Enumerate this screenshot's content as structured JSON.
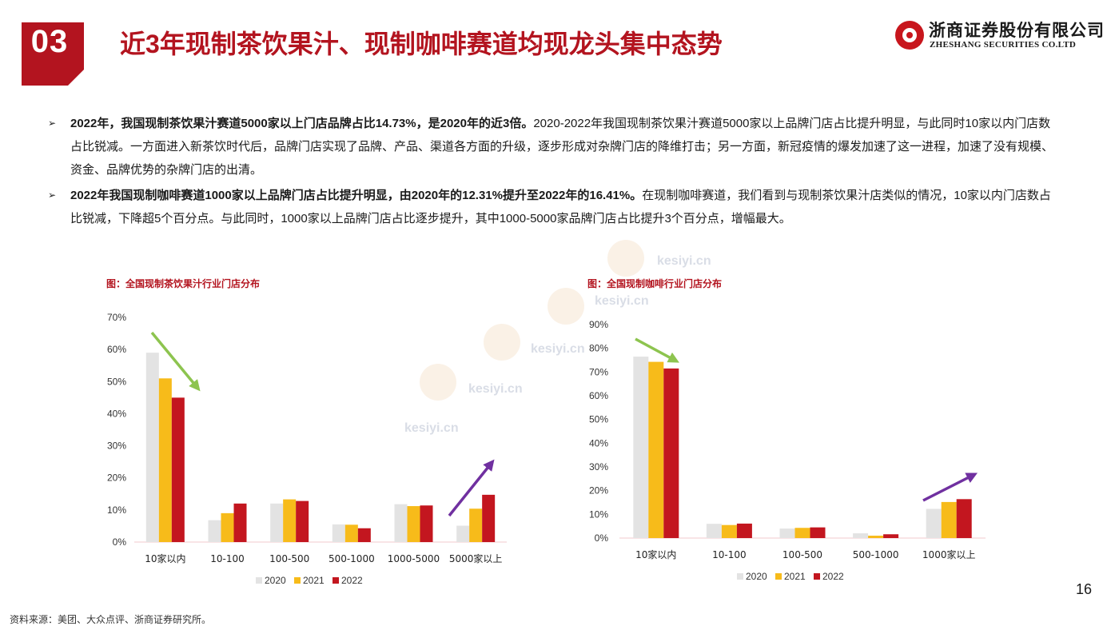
{
  "header": {
    "section_number": "03",
    "title": "近3年现制茶饮果汁、现制咖啡赛道均现龙头集中态势",
    "logo_cn": "浙商证券股份有限公司",
    "logo_en": "ZHESHANG SECURITIES CO.LTD"
  },
  "bullets": [
    {
      "bold": "2022年，我国现制茶饮果汁赛道5000家以上门店品牌占比14.73%，是2020年的近3倍。",
      "text": "2020-2022年我国现制茶饮果汁赛道5000家以上品牌门店占比提升明显，与此同时10家以内门店数占比锐减。一方面进入新茶饮时代后，品牌门店实现了品牌、产品、渠道各方面的升级，逐步形成对杂牌门店的降维打击；另一方面，新冠疫情的爆发加速了这一进程，加速了没有规模、资金、品牌优势的杂牌门店的出清。"
    },
    {
      "bold": "2022年我国现制咖啡赛道1000家以上品牌门店占比提升明显，由2020年的12.31%提升至2022年的16.41%。",
      "text": "在现制咖啡赛道，我们看到与现制茶饮果汁店类似的情况，10家以内门店数占比锐减，下降超5个百分点。与此同时，1000家以上品牌门店占比逐步提升，其中1000-5000家品牌门店占比提升3个百分点，增幅最大。"
    }
  ],
  "watermark": "kesiyi.cn",
  "colors": {
    "accent_red": "#b3141f",
    "series_2020": "#e3e3e3",
    "series_2021": "#f7bb1a",
    "series_2022": "#c3161f",
    "arrow_down": "#8dc44f",
    "arrow_up": "#7030a0"
  },
  "chart_data": [
    {
      "type": "bar",
      "title": "图：全国现制茶饮果汁行业门店分布",
      "categories": [
        "10家以内",
        "10-100",
        "100-500",
        "500-1000",
        "1000-5000",
        "5000家以上"
      ],
      "series": [
        {
          "name": "2020",
          "values": [
            59,
            6.8,
            12,
            5.5,
            11.8,
            5.1
          ]
        },
        {
          "name": "2021",
          "values": [
            51,
            9,
            13.3,
            5.4,
            11.2,
            10.4
          ]
        },
        {
          "name": "2022",
          "values": [
            45,
            12,
            12.8,
            4.3,
            11.4,
            14.73
          ]
        }
      ],
      "ylim": [
        0,
        70
      ],
      "yticks": [
        "0%",
        "10%",
        "20%",
        "30%",
        "40%",
        "50%",
        "60%",
        "70%"
      ],
      "legend_position": "bottom",
      "arrows": [
        "down over 10家以内",
        "up over 5000家以上"
      ]
    },
    {
      "type": "bar",
      "title": "图：全国现制咖啡行业门店分布",
      "categories": [
        "10家以内",
        "10-100",
        "100-500",
        "500-1000",
        "1000家以上"
      ],
      "series": [
        {
          "name": "2020",
          "values": [
            76.5,
            6,
            4,
            2,
            12.31
          ]
        },
        {
          "name": "2021",
          "values": [
            74.3,
            5.5,
            4.3,
            1,
            15.2
          ]
        },
        {
          "name": "2022",
          "values": [
            71.5,
            6.1,
            4.5,
            1.6,
            16.41
          ]
        }
      ],
      "ylim": [
        0,
        90
      ],
      "yticks": [
        "0%",
        "10%",
        "20%",
        "30%",
        "40%",
        "50%",
        "60%",
        "70%",
        "80%",
        "90%"
      ],
      "legend_position": "bottom",
      "arrows": [
        "down over 10家以内",
        "up over 1000家以上"
      ]
    }
  ],
  "footer": {
    "page_number": "16",
    "source": "资料来源：美团、大众点评、浙商证券研究所。"
  }
}
